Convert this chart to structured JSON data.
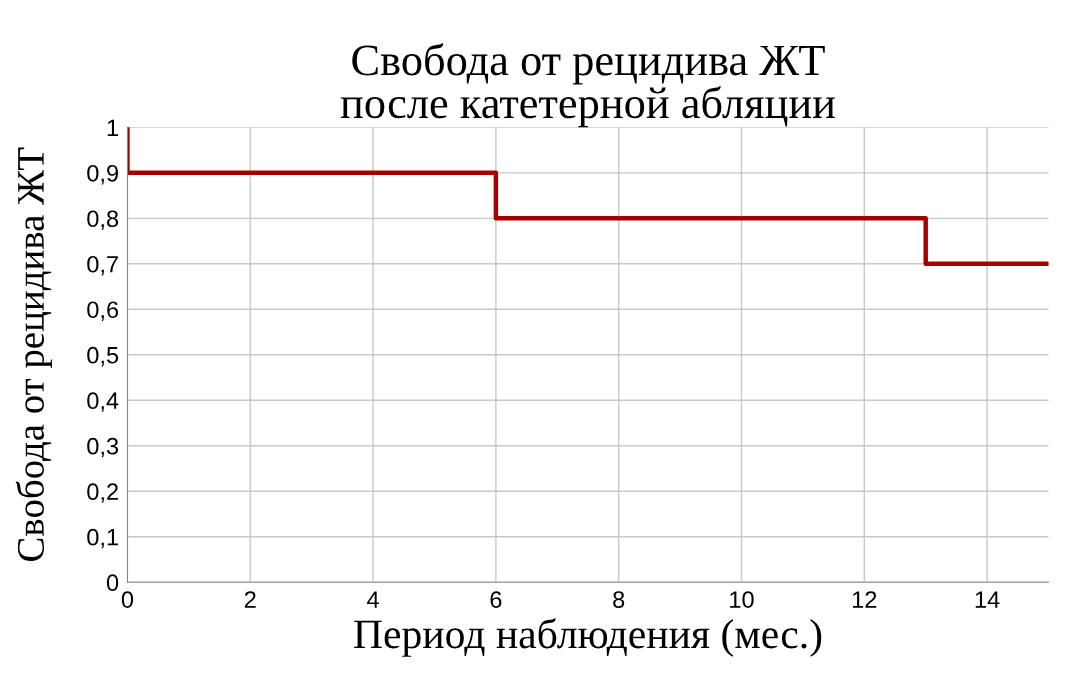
{
  "chart_data": {
    "type": "step",
    "title": "Свобода от рецидива ЖТ\nпосле катетерной абляции",
    "xlabel": "Период наблюдения (мес.)",
    "ylabel": "Свобода от рецидива ЖТ",
    "x": [
      0,
      0,
      6,
      13,
      15
    ],
    "series": [
      {
        "color": "#a50000",
        "values": [
          1,
          0.9,
          0.8,
          0.7,
          0.7
        ]
      }
    ],
    "xlim": [
      0,
      15
    ],
    "xticks": [
      0,
      2,
      4,
      6,
      8,
      10,
      12,
      14
    ],
    "ylim": [
      0,
      1
    ],
    "yticks": [
      0,
      {
        "value": 0.1,
        "label": "0,1"
      },
      {
        "value": 0.2,
        "label": "0,2"
      },
      {
        "value": 0.3,
        "label": "0,3"
      },
      {
        "value": 0.4,
        "label": "0,4"
      },
      {
        "value": 0.5,
        "label": "0,5"
      },
      {
        "value": 0.6,
        "label": "0,6"
      },
      {
        "value": 0.7,
        "label": "0,7"
      },
      {
        "value": 0.8,
        "label": "0,8"
      },
      {
        "value": 0.9,
        "label": "0,9"
      },
      1
    ],
    "grid": true,
    "legend": false,
    "marker": "none",
    "line_style": "solid"
  }
}
